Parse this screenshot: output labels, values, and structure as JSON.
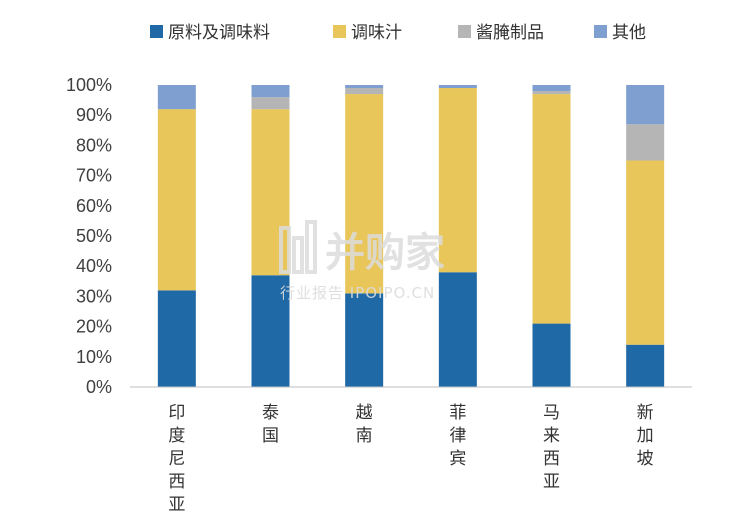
{
  "watermark": {
    "name": "并购家",
    "tagline": "行业报告 IPOIPO.CN"
  },
  "chart_data": {
    "type": "bar",
    "stacked": true,
    "percent": true,
    "categories": [
      "印度尼西亚",
      "泰国",
      "越南",
      "菲律宾",
      "马来西亚",
      "新加坡"
    ],
    "series": [
      {
        "name": "原料及调味料",
        "color": "#1f6aa6",
        "values": [
          32,
          37,
          31,
          38,
          21,
          14
        ]
      },
      {
        "name": "调味汁",
        "color": "#e8c65a",
        "values": [
          60,
          55,
          66,
          61,
          76,
          61
        ]
      },
      {
        "name": "酱腌制品",
        "color": "#b5b5b5",
        "values": [
          0,
          4,
          2,
          0,
          1,
          12
        ]
      },
      {
        "name": "其他",
        "color": "#7e9fd0",
        "values": [
          8,
          4,
          1,
          1,
          2,
          13
        ]
      }
    ],
    "yticks": [
      "0%",
      "10%",
      "20%",
      "30%",
      "40%",
      "50%",
      "60%",
      "70%",
      "80%",
      "90%",
      "100%"
    ],
    "ylim": [
      0,
      100
    ],
    "legend_position": "top",
    "grid": false
  }
}
